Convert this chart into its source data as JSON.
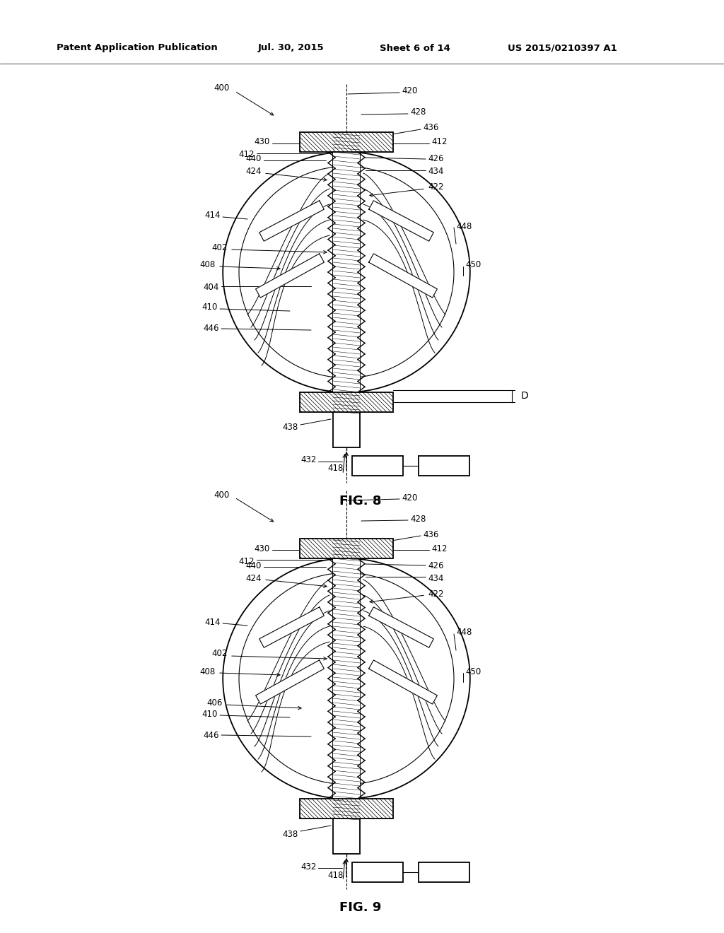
{
  "bg_color": "#ffffff",
  "line_color": "#000000",
  "header_text": "Patent Application Publication",
  "header_date": "Jul. 30, 2015",
  "header_sheet": "Sheet 6 of 14",
  "header_patent": "US 2015/0210397 A1",
  "fig8_label": "FIG. 8",
  "fig9_label": "FIG. 9",
  "lw_thin": 0.8,
  "lw_med": 1.3,
  "lw_thick": 2.0,
  "fs_label": 8.5,
  "fs_header": 9.5,
  "fs_fig": 13
}
